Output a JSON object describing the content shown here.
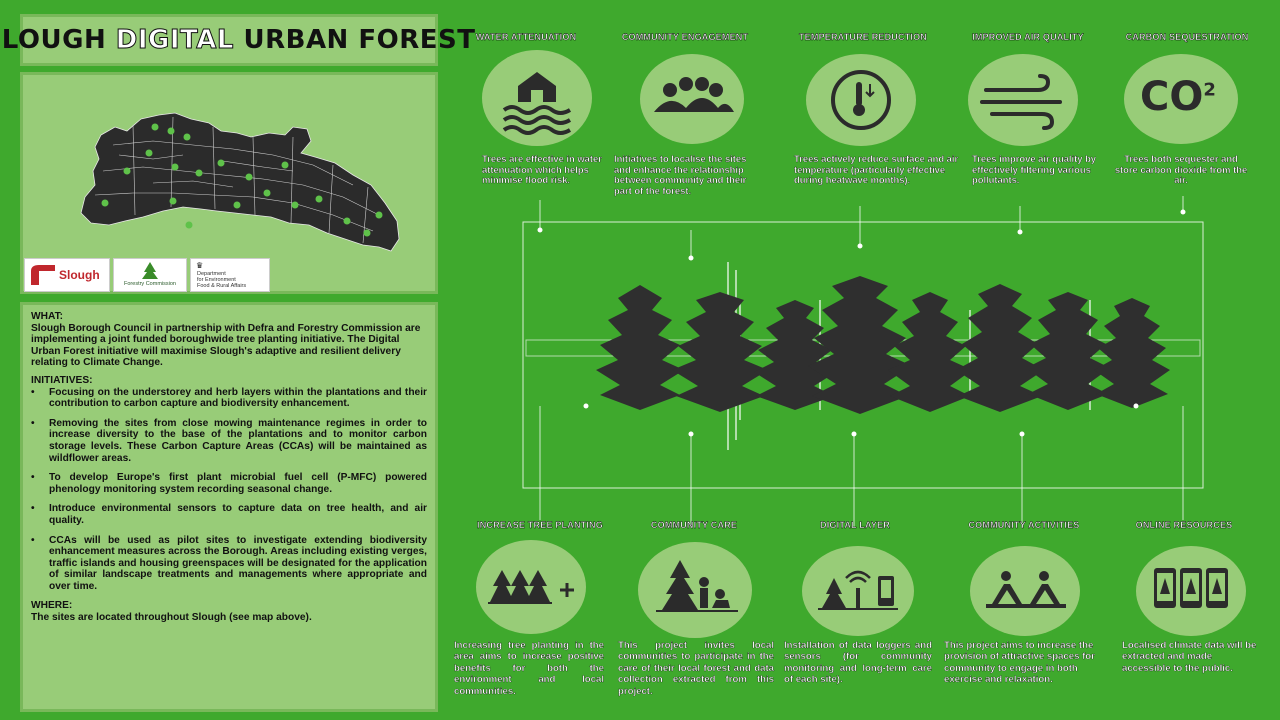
{
  "title": {
    "part1": "SLOUGH ",
    "part2": "DIGITAL",
    "part3": " URBAN FOREST"
  },
  "logos": {
    "slough": "Slough",
    "forestry": "Forestry Commission",
    "defra_line1": "Department",
    "defra_line2": "for Environment",
    "defra_line3": "Food & Rural Affairs"
  },
  "what": {
    "heading": "WHAT:",
    "text": "Slough Borough Council in partnership with Defra and Forestry Commission are implementing a joint funded boroughwide tree planting initiative. The Digital Urban Forest initiative will maximise Slough's adaptive and resilient delivery relating to Climate Change."
  },
  "initiatives": {
    "heading": "INITIATIVES:",
    "items": [
      "Focusing on the understorey and herb layers within the plantations and their contribution to carbon capture and biodiversity enhancement.",
      "Removing the sites from close mowing maintenance regimes in order to increase diversity to the base of the plantations and to monitor carbon storage levels. These Carbon Capture Areas (CCAs) will be maintained as wildflower areas.",
      "To develop Europe's first plant microbial fuel cell (P-MFC) powered phenology monitoring system recording seasonal change.",
      "Introduce environmental sensors to capture data on tree health, and air quality.",
      "CCAs will be used as pilot sites to investigate extending biodiversity enhancement measures across the Borough. Areas including existing verges, traffic islands and housing greenspaces will be designated for the application of similar landscape treatments and managements where appropriate and over time."
    ]
  },
  "where": {
    "heading": "WHERE:",
    "text": "The sites are located throughout Slough (see map above)."
  },
  "top_benefits": [
    {
      "label": "WATER ATTENUATION",
      "icon": "house-flood-icon",
      "desc": "Trees are effective in water attenuation which helps minimise flood risk."
    },
    {
      "label": "COMMUNITY ENGAGEMENT",
      "icon": "people-icon",
      "desc": "Initiatives to localise the sites and enhance the relationship between community and their part of the forest."
    },
    {
      "label": "TEMPERATURE REDUCTION",
      "icon": "thermometer-icon",
      "desc": "Trees actively reduce surface and air temperature (particularly effective during heatwave months)."
    },
    {
      "label": "IMPROVED AIR QUALITY",
      "icon": "wind-icon",
      "desc": "Trees improve air quality by effectively filtering various pollutants."
    },
    {
      "label": "CARBON SEQUESTRATION",
      "icon": "co2-icon",
      "desc": "Trees both sequester and store carbon dioxide from the air."
    }
  ],
  "co2_text": {
    "main": "CO",
    "sup": "2"
  },
  "bottom_benefits": [
    {
      "label": "INCREASE TREE PLANTING",
      "icon": "trees-plus-icon",
      "desc": "Increasing tree planting in the area aims to increase positive benefits for both the environment and local communities."
    },
    {
      "label": "COMMUNITY CARE",
      "icon": "gardening-icon",
      "desc": "This project invites local communities to participate in the care of their local forest and data collection extracted from this project."
    },
    {
      "label": "DIGITAL LAYER",
      "icon": "sensor-icon",
      "desc": "Installation of data loggers and sensors (for community monitoring and long-term care of each site)."
    },
    {
      "label": "COMMUNITY ACTIVITIES",
      "icon": "yoga-icon",
      "desc": "This project aims to increase the provision of attractive spaces for community to engage in both exercise and relaxation."
    },
    {
      "label": "ONLINE RESOURCES",
      "icon": "phones-icon",
      "desc": "Localised climate data will be extracted and made accessible to the public."
    }
  ],
  "colors": {
    "background": "#3fa92d",
    "panel": "#98cc78",
    "dark": "#2b2b2b",
    "white": "#ffffff"
  }
}
